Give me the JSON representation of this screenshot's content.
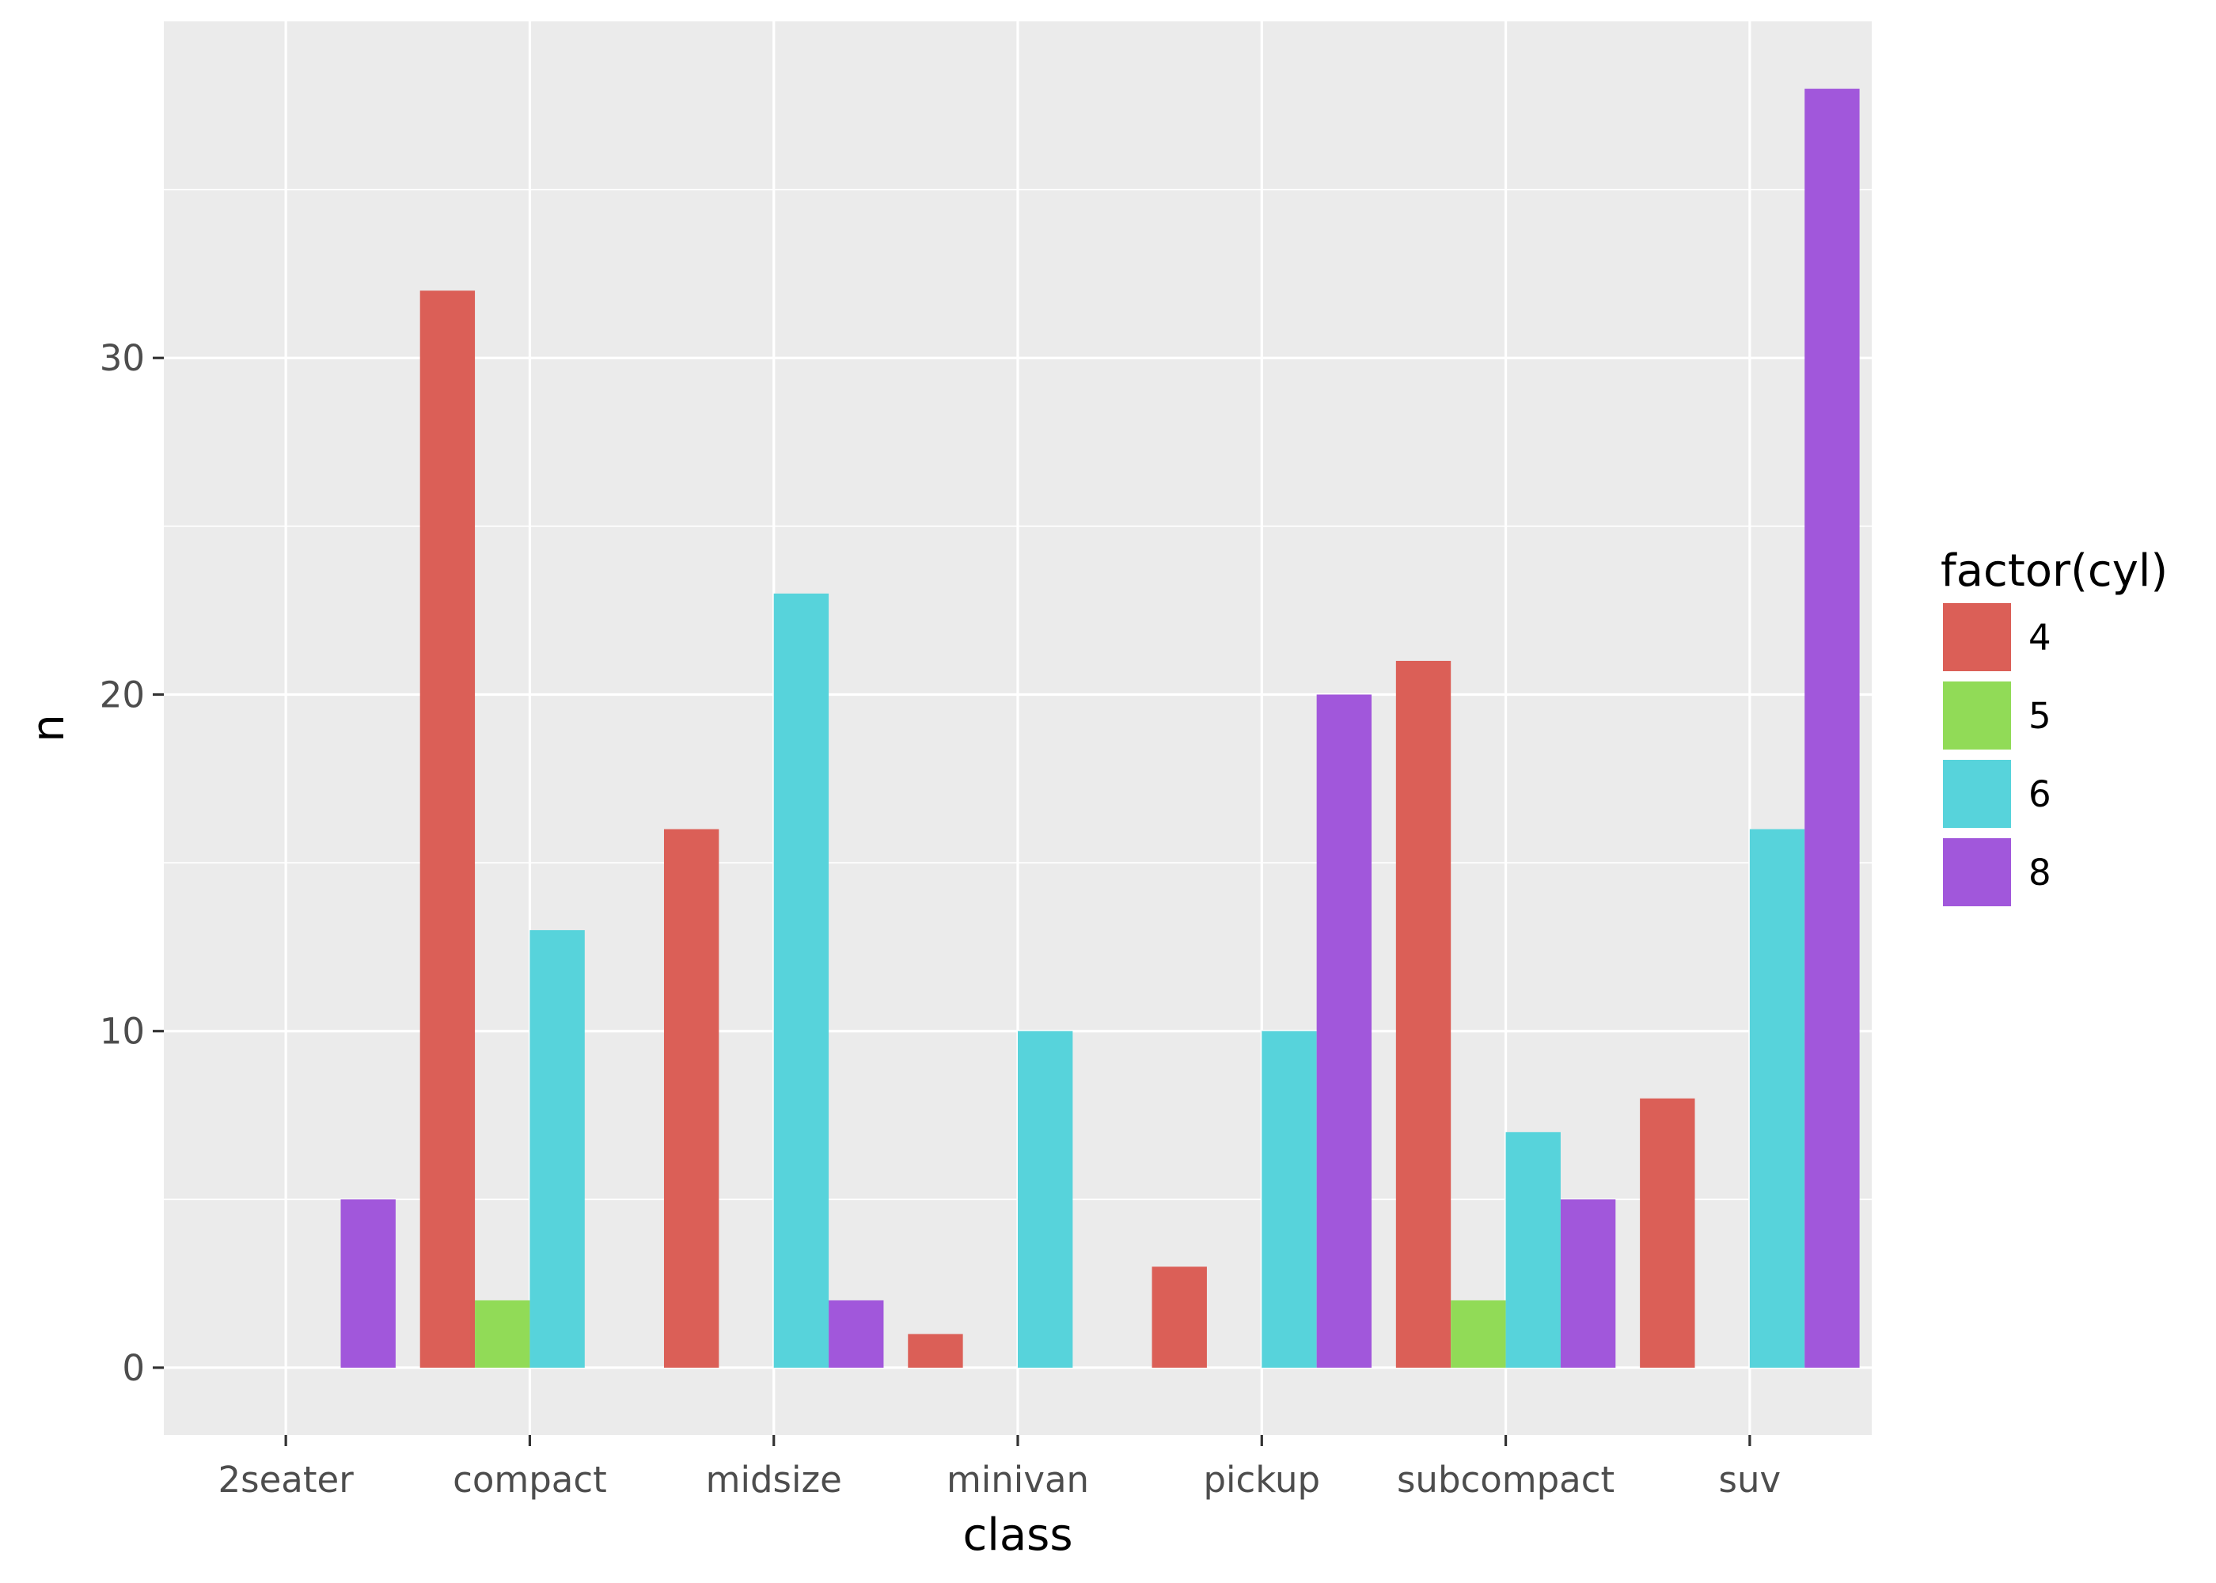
{
  "chart_data": {
    "type": "bar",
    "xlabel": "class",
    "ylabel": "n",
    "categories": [
      "2seater",
      "compact",
      "midsize",
      "minivan",
      "pickup",
      "subcompact",
      "suv"
    ],
    "ylim": [
      -2,
      40
    ],
    "y_ticks": [
      0,
      10,
      20,
      30
    ],
    "grid": true,
    "legend": {
      "title": "factor(cyl)",
      "position": "right"
    },
    "series": [
      {
        "name": "4",
        "color": "#DB5F57",
        "values": [
          0,
          32,
          16,
          1,
          3,
          21,
          8
        ]
      },
      {
        "name": "5",
        "color": "#91DB57",
        "values": [
          0,
          2,
          0,
          0,
          0,
          2,
          0
        ]
      },
      {
        "name": "6",
        "color": "#57D3DB",
        "values": [
          0,
          13,
          23,
          10,
          10,
          7,
          16
        ]
      },
      {
        "name": "8",
        "color": "#A157DB",
        "values": [
          5,
          0,
          2,
          0,
          20,
          5,
          38
        ]
      }
    ],
    "colors": {
      "panel": "#EBEBEB",
      "grid": "#FFFFFF",
      "tick": "#333333"
    }
  }
}
